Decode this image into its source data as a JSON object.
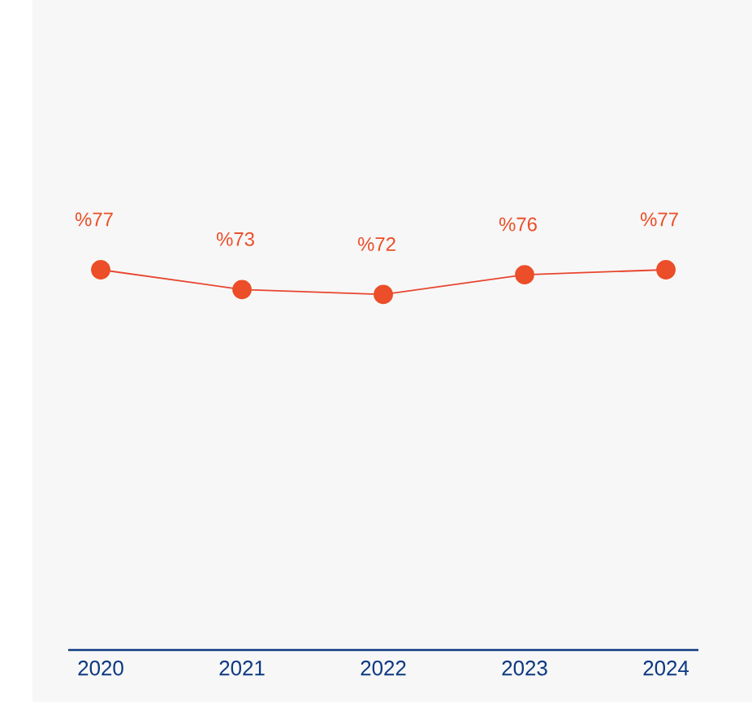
{
  "chart_data": {
    "type": "line",
    "categories": [
      "2020",
      "2021",
      "2022",
      "2023",
      "2024"
    ],
    "series": [
      {
        "color": "#e8452f",
        "values": [
          77,
          73,
          72,
          76,
          77
        ],
        "value_labels": [
          "%77",
          "%73",
          "%72",
          "%76",
          "%77"
        ]
      }
    ],
    "marker": "circle",
    "line_style": "solid",
    "tick_labels": "x",
    "grid": false
  }
}
